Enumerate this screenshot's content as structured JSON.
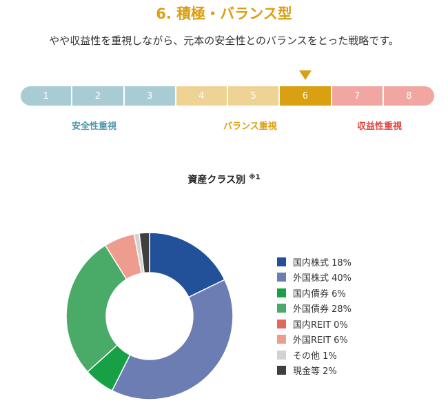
{
  "header": {
    "title": "6. 積極・バランス型",
    "subtitle": "やや収益性を重視しながら、元本の安全性とのバランスをとった戦略です。"
  },
  "risk_scale": {
    "segments": [
      {
        "label": "1",
        "color": "#a9cbd3"
      },
      {
        "label": "2",
        "color": "#a9cbd3"
      },
      {
        "label": "3",
        "color": "#a9cbd3"
      },
      {
        "label": "4",
        "color": "#efd395"
      },
      {
        "label": "5",
        "color": "#efd395"
      },
      {
        "label": "6",
        "color": "#d9a012"
      },
      {
        "label": "7",
        "color": "#f2a6a2"
      },
      {
        "label": "8",
        "color": "#f2a6a2"
      }
    ],
    "selected": 6,
    "categories": {
      "safety": {
        "label": "安全性重視",
        "color": "#4a98ac"
      },
      "balance": {
        "label": "バランス重視",
        "color": "#d9a012"
      },
      "return": {
        "label": "収益性重視",
        "color": "#e2423c"
      }
    }
  },
  "chart_data": {
    "type": "pie",
    "title": "資産クラス別",
    "title_note": "※1",
    "slices": [
      {
        "label": "国内株式 18%",
        "name": "国内株式",
        "value": 18,
        "color": "#22519a"
      },
      {
        "label": "外国株式 40%",
        "name": "外国株式",
        "value": 40,
        "color": "#6c7db3"
      },
      {
        "label": "国内債券 6%",
        "name": "国内債券",
        "value": 6,
        "color": "#17a045"
      },
      {
        "label": "外国債券 28%",
        "name": "外国債券",
        "value": 28,
        "color": "#4aab68"
      },
      {
        "label": "国内REIT 0%",
        "name": "国内REIT",
        "value": 0,
        "color": "#e0695c"
      },
      {
        "label": "外国REIT 6%",
        "name": "外国REIT",
        "value": 6,
        "color": "#ee9c8e"
      },
      {
        "label": "その他 1%",
        "name": "その他",
        "value": 1,
        "color": "#d2d2d2"
      },
      {
        "label": "現金等 2%",
        "name": "現金等",
        "value": 2,
        "color": "#3f3f3f"
      }
    ],
    "legend_position": "right"
  }
}
